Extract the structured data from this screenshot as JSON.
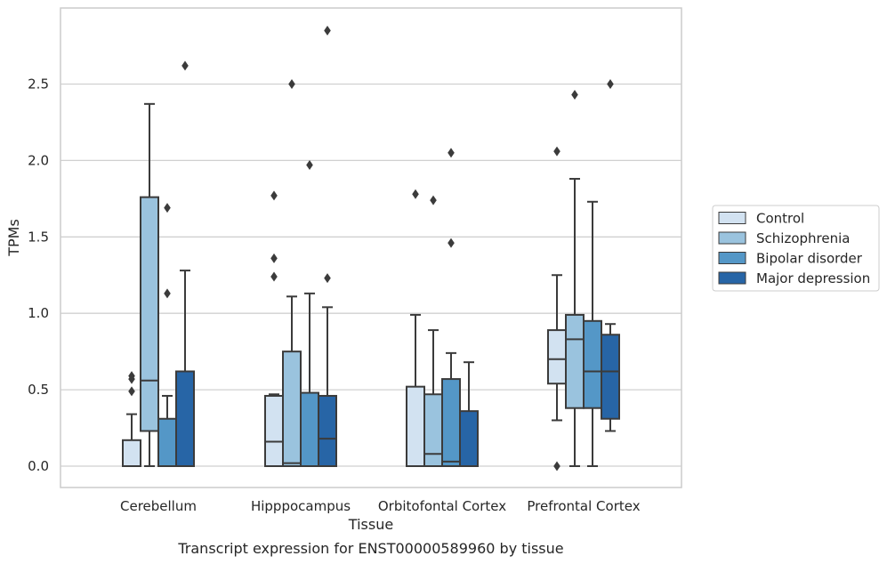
{
  "chart_data": {
    "type": "box",
    "xlabel": "Tissue",
    "ylabel": "TPMs",
    "caption": "Transcript expression for ENST00000589960 by tissue",
    "ylim": [
      -0.14,
      3.0
    ],
    "yticks": [
      0.0,
      0.5,
      1.0,
      1.5,
      2.0,
      2.5
    ],
    "ytick_labels": [
      "0.0",
      "0.5",
      "1.0",
      "1.5",
      "2.0",
      "2.5"
    ],
    "categories": [
      "Cerebellum",
      "Hipppocampus",
      "Orbitofontal Cortex",
      "Prefrontal Cortex"
    ],
    "grid": "horizontal",
    "legend_position": "right",
    "series": [
      {
        "name": "Control",
        "color": "#d2e2f1",
        "boxes": [
          {
            "min": 0.0,
            "q1": 0.0,
            "median": 0.0,
            "q3": 0.17,
            "max": 0.34,
            "outliers": [
              0.59,
              0.57,
              0.49
            ]
          },
          {
            "min": 0.0,
            "q1": 0.0,
            "median": 0.16,
            "q3": 0.46,
            "max": 0.47,
            "outliers": [
              1.77,
              1.36,
              1.24
            ]
          },
          {
            "min": 0.0,
            "q1": 0.0,
            "median": 0.0,
            "q3": 0.52,
            "max": 0.99,
            "outliers": [
              1.78
            ]
          },
          {
            "min": 0.3,
            "q1": 0.54,
            "median": 0.7,
            "q3": 0.89,
            "max": 1.25,
            "outliers": [
              2.06,
              0.0
            ]
          }
        ]
      },
      {
        "name": "Schizophrenia",
        "color": "#9ac3de",
        "boxes": [
          {
            "min": 0.0,
            "q1": 0.23,
            "median": 0.56,
            "q3": 1.76,
            "max": 2.37,
            "outliers": []
          },
          {
            "min": 0.0,
            "q1": 0.0,
            "median": 0.02,
            "q3": 0.75,
            "max": 1.11,
            "outliers": [
              2.5
            ]
          },
          {
            "min": 0.0,
            "q1": 0.0,
            "median": 0.08,
            "q3": 0.47,
            "max": 0.89,
            "outliers": [
              1.74
            ]
          },
          {
            "min": 0.0,
            "q1": 0.38,
            "median": 0.83,
            "q3": 0.99,
            "max": 1.88,
            "outliers": [
              2.43
            ]
          }
        ]
      },
      {
        "name": "Bipolar disorder",
        "color": "#5497c7",
        "boxes": [
          {
            "min": 0.0,
            "q1": 0.0,
            "median": 0.0,
            "q3": 0.31,
            "max": 0.46,
            "outliers": [
              1.69,
              1.13
            ]
          },
          {
            "min": 0.0,
            "q1": 0.0,
            "median": 0.0,
            "q3": 0.48,
            "max": 1.13,
            "outliers": [
              1.97
            ]
          },
          {
            "min": 0.0,
            "q1": 0.0,
            "median": 0.03,
            "q3": 0.57,
            "max": 0.74,
            "outliers": [
              2.05,
              1.46
            ]
          },
          {
            "min": 0.0,
            "q1": 0.38,
            "median": 0.62,
            "q3": 0.95,
            "max": 1.73,
            "outliers": []
          }
        ]
      },
      {
        "name": "Major depression",
        "color": "#2765a6",
        "boxes": [
          {
            "min": 0.0,
            "q1": 0.0,
            "median": 0.0,
            "q3": 0.62,
            "max": 1.28,
            "outliers": [
              2.62
            ]
          },
          {
            "min": 0.0,
            "q1": 0.0,
            "median": 0.18,
            "q3": 0.46,
            "max": 1.04,
            "outliers": [
              2.85,
              1.23
            ]
          },
          {
            "min": 0.0,
            "q1": 0.0,
            "median": 0.0,
            "q3": 0.36,
            "max": 0.68,
            "outliers": []
          },
          {
            "min": 0.23,
            "q1": 0.31,
            "median": 0.62,
            "q3": 0.86,
            "max": 0.93,
            "outliers": [
              2.5
            ]
          }
        ]
      }
    ]
  }
}
